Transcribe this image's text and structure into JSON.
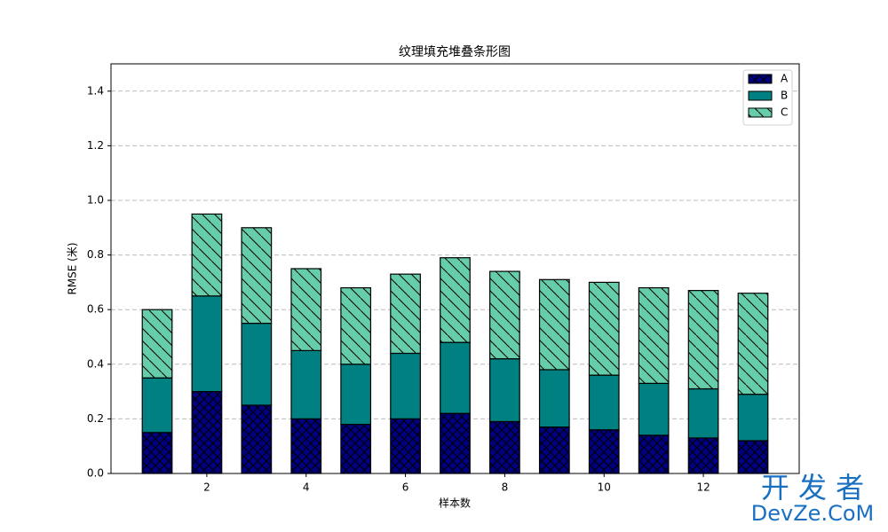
{
  "chart_data": {
    "type": "stacked_bar",
    "title": "纹理填充堆叠条形图",
    "x_label": "样本数",
    "y_label": "RMSE (米)",
    "x": [
      1,
      2,
      3,
      4,
      5,
      6,
      7,
      8,
      9,
      10,
      11,
      12,
      13
    ],
    "xlim": [
      0.07,
      13.93
    ],
    "xticks": [
      2,
      4,
      6,
      8,
      10,
      12
    ],
    "ylim": [
      0,
      1.5
    ],
    "yticks": [
      {
        "value": 0,
        "label": "0.0"
      },
      {
        "value": 0.2,
        "label": "0.2"
      },
      {
        "value": 0.4,
        "label": "0.4"
      },
      {
        "value": 0.6,
        "label": "0.6"
      },
      {
        "value": 0.8,
        "label": "0.8"
      },
      {
        "value": 1,
        "label": "1.0"
      },
      {
        "value": 1.2,
        "label": "1.2"
      },
      {
        "value": 1.4,
        "label": "1.4"
      }
    ],
    "grid": true,
    "legend": "upper right",
    "series": [
      {
        "name": "A",
        "color": "#000080",
        "hatch": "xx",
        "values": [
          0.15,
          0.3,
          0.25,
          0.2,
          0.18,
          0.2,
          0.22,
          0.19,
          0.17,
          0.16,
          0.14,
          0.13,
          0.12
        ]
      },
      {
        "name": "B",
        "color": "#008080",
        "hatch": "",
        "values": [
          0.2,
          0.35,
          0.3,
          0.25,
          0.22,
          0.24,
          0.26,
          0.23,
          0.21,
          0.2,
          0.19,
          0.18,
          0.17
        ]
      },
      {
        "name": "C",
        "color": "#66cdaa",
        "hatch": "\\",
        "values": [
          0.25,
          0.3,
          0.35,
          0.3,
          0.28,
          0.29,
          0.31,
          0.32,
          0.33,
          0.34,
          0.35,
          0.36,
          0.37
        ]
      }
    ],
    "watermark": [
      "开 发 者",
      "DevZe.CoM"
    ]
  }
}
